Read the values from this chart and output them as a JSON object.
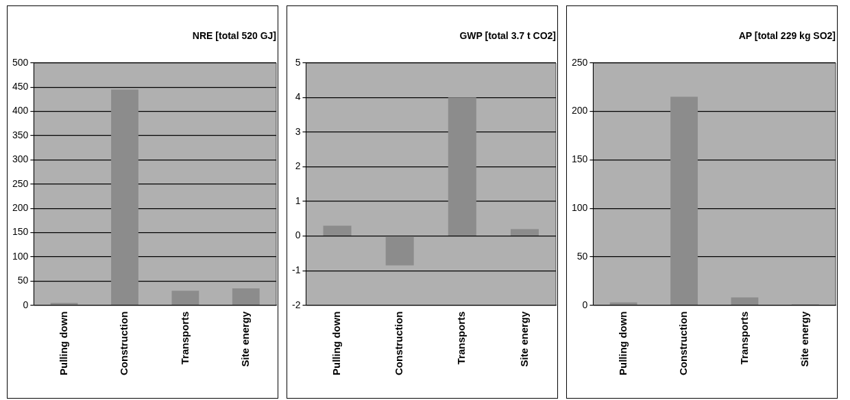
{
  "chart_data": [
    {
      "type": "bar",
      "title": "NRE [total 520 GJ]",
      "categories": [
        "Pulling down",
        "Construction",
        "Transports",
        "Site energy"
      ],
      "values": [
        5,
        445,
        30,
        35
      ],
      "color": "#8c8c8c",
      "ylim": [
        0,
        500
      ],
      "yticks": [
        0,
        50,
        100,
        150,
        200,
        250,
        300,
        350,
        400,
        450,
        500
      ],
      "grid": "y"
    },
    {
      "type": "bar",
      "title": "GWP [total 3.7 t CO2]",
      "categories": [
        "Pulling down",
        "Construction",
        "Transports",
        "Site energy"
      ],
      "values": [
        0.3,
        -0.85,
        4.0,
        0.2
      ],
      "color": "#8c8c8c",
      "ylim": [
        -2,
        5
      ],
      "yticks": [
        -2,
        -1,
        0,
        1,
        2,
        3,
        4,
        5
      ],
      "grid": "y"
    },
    {
      "type": "bar",
      "title": "AP [total 229 kg SO2]",
      "categories": [
        "Pulling down",
        "Construction",
        "Transports",
        "Site energy"
      ],
      "values": [
        3,
        215,
        8,
        1
      ],
      "color": "#8c8c8c",
      "ylim": [
        0,
        250
      ],
      "yticks": [
        0,
        50,
        100,
        150,
        200,
        250
      ],
      "grid": "y"
    }
  ]
}
